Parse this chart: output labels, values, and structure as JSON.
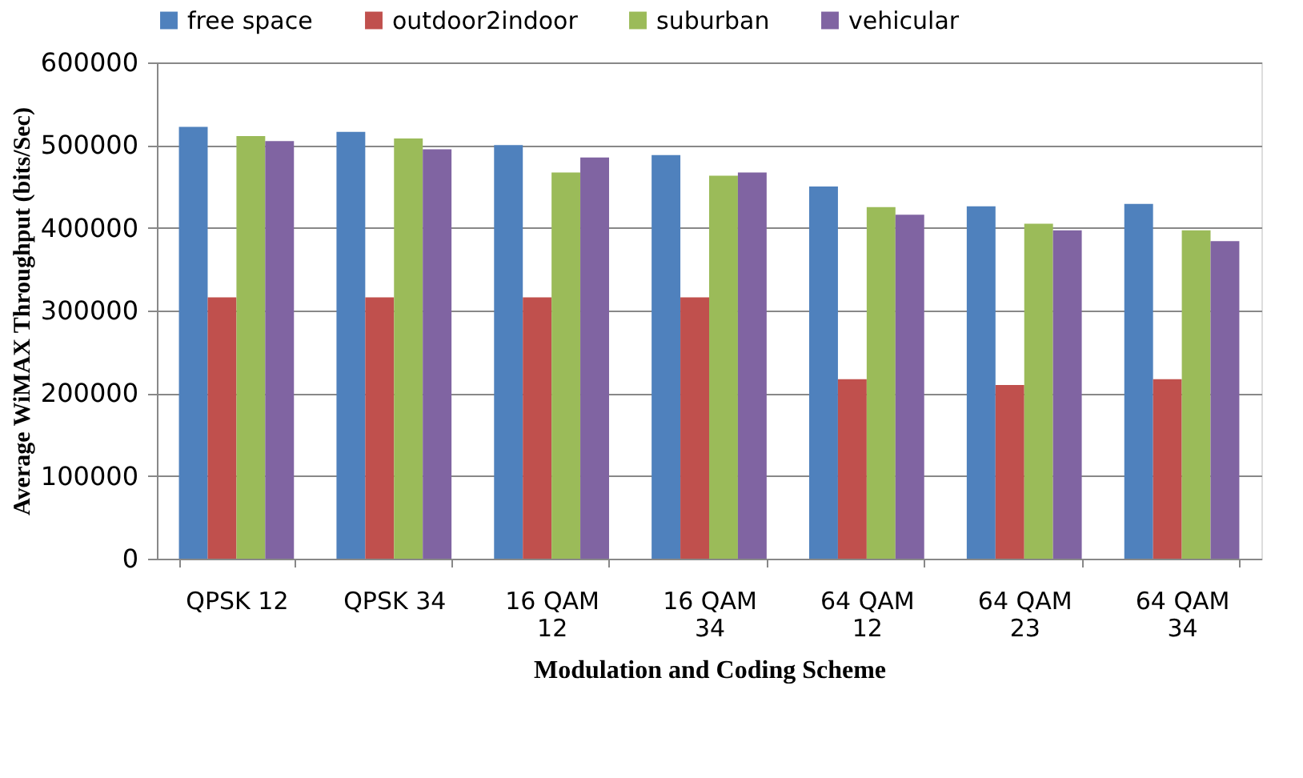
{
  "chart_data": {
    "type": "bar",
    "xlabel": "Modulation and Coding Scheme",
    "ylabel": "Average  WiMAX Throughput  (bits/Sec)",
    "categories": [
      "QPSK 12",
      "QPSK 34",
      "16 QAM 12",
      "16 QAM 34",
      "64 QAM 12",
      "64 QAM 23",
      "64 QAM 34"
    ],
    "series": [
      {
        "name": "free space",
        "color": "#4f81bd",
        "values": [
          522000,
          516000,
          500000,
          488000,
          450000,
          426000,
          429000
        ]
      },
      {
        "name": "outdoor2indoor",
        "color": "#c0504d",
        "values": [
          316000,
          316000,
          316000,
          316000,
          217000,
          210000,
          217000
        ]
      },
      {
        "name": "suburban",
        "color": "#9bbb59",
        "values": [
          511000,
          508000,
          467000,
          463000,
          425000,
          405000,
          397000
        ]
      },
      {
        "name": "vehicular",
        "color": "#8064a2",
        "values": [
          505000,
          495000,
          485000,
          467000,
          416000,
          397000,
          384000
        ]
      }
    ],
    "ylim": [
      0,
      600000
    ],
    "yticks": [
      0,
      100000,
      200000,
      300000,
      400000,
      500000,
      600000
    ],
    "grid": "y",
    "legend": "top"
  }
}
